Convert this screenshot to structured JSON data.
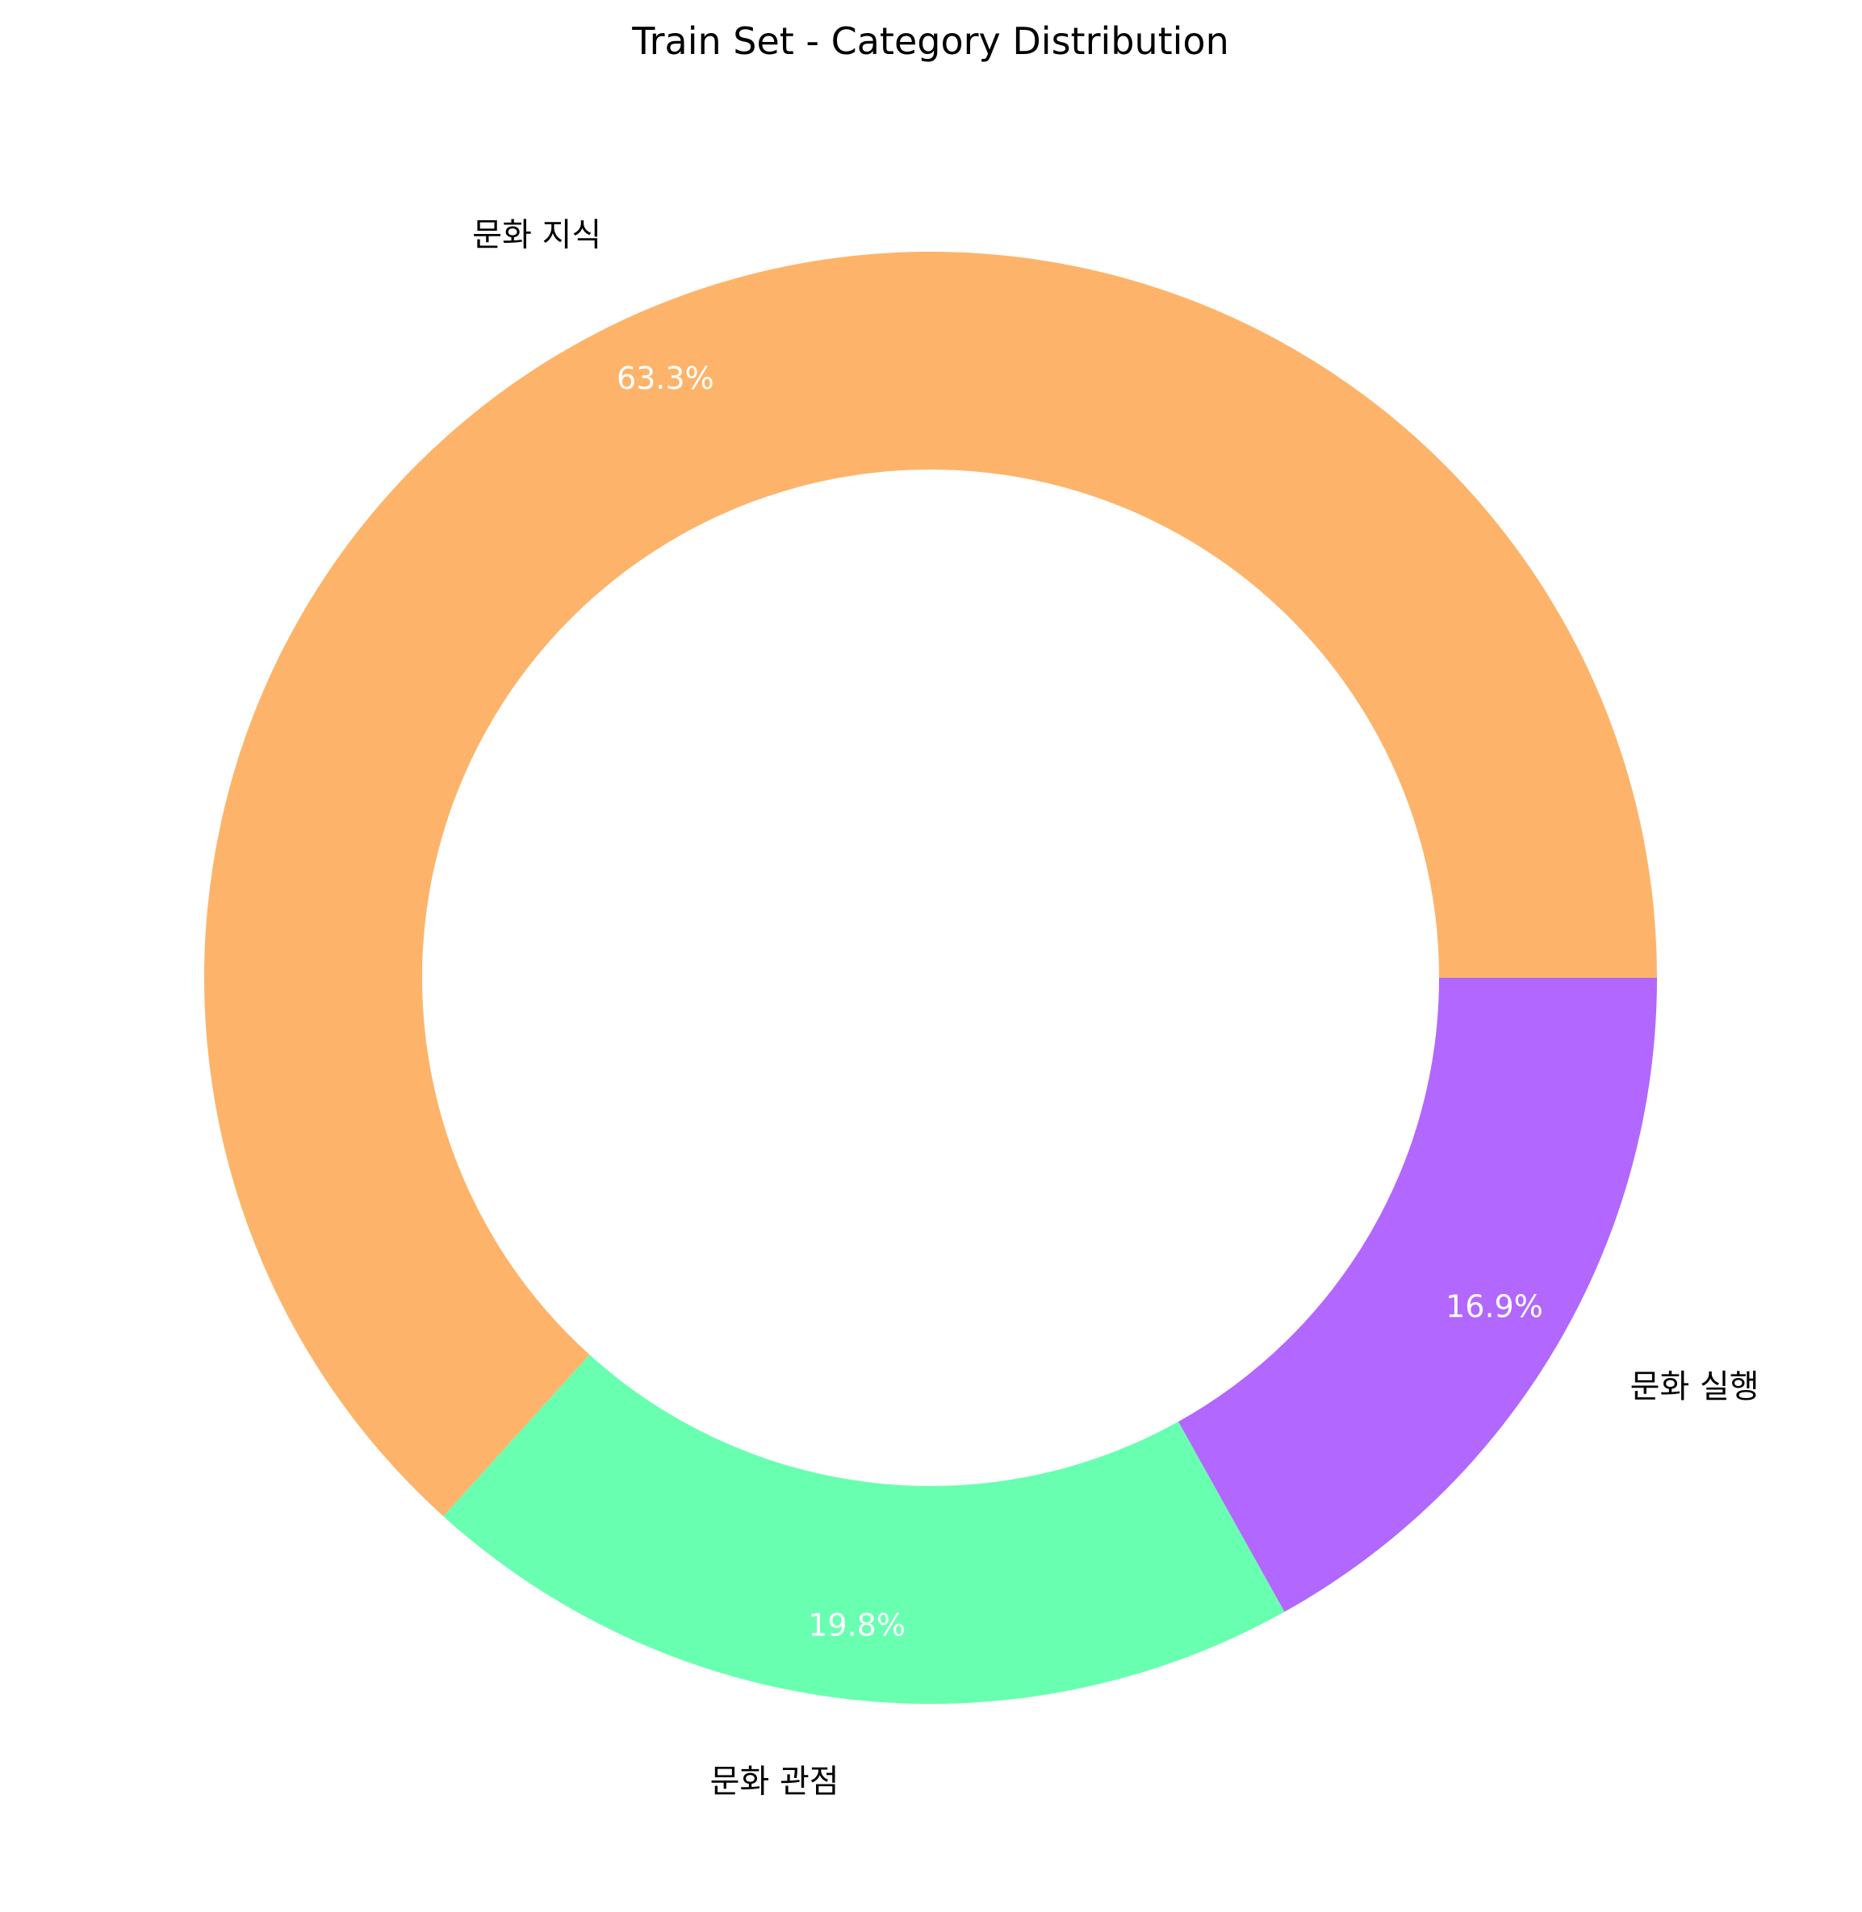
{
  "chart_data": {
    "type": "pie",
    "donut": true,
    "title": "Train Set - Category Distribution",
    "start_angle_deg": 0,
    "direction": "counterclockwise",
    "slices": [
      {
        "label": "문화 지식",
        "value": 63.3,
        "pct_label": "63.3%",
        "color": "#FDB46A"
      },
      {
        "label": "문화 관점",
        "value": 19.8,
        "pct_label": "19.8%",
        "color": "#69FFB0"
      },
      {
        "label": "문화 실행",
        "value": 16.9,
        "pct_label": "16.9%",
        "color": "#B267FF"
      }
    ]
  }
}
